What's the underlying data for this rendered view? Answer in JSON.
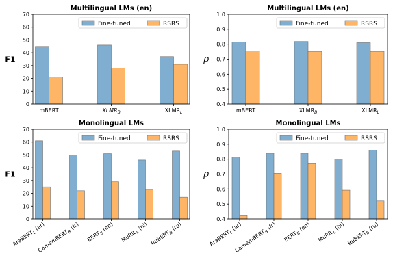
{
  "chart_data": [
    {
      "type": "bar",
      "title": "Multilingual LMs (en)",
      "ylabel": "F1",
      "ylim": [
        0,
        70
      ],
      "yticks": [
        0,
        10,
        20,
        30,
        40,
        50,
        60,
        70
      ],
      "categories": [
        {
          "base": "mBERT",
          "sub": "",
          "italic": false
        },
        {
          "base": "XLMR",
          "sub": "B",
          "italic": true
        },
        {
          "base": "XLMR",
          "sub": "L",
          "italic": false
        }
      ],
      "series": [
        {
          "name": "Fine-tuned",
          "values": [
            45,
            46,
            37
          ]
        },
        {
          "name": "RSRS",
          "values": [
            21,
            28,
            31
          ]
        }
      ],
      "legend": "top-right",
      "grid": false
    },
    {
      "type": "bar",
      "title": "Multilingual LMs (en)",
      "ylabel": "ρ",
      "ylim": [
        0.4,
        1.0
      ],
      "yticks": [
        0.4,
        0.5,
        0.6,
        0.7,
        0.8,
        0.9,
        1.0
      ],
      "categories": [
        {
          "base": "mBERT",
          "sub": "",
          "italic": false
        },
        {
          "base": "XLMR",
          "sub": "B",
          "italic": false
        },
        {
          "base": "XLMR",
          "sub": "L",
          "italic": false
        }
      ],
      "series": [
        {
          "name": "Fine-tuned",
          "values": [
            0.815,
            0.818,
            0.81
          ]
        },
        {
          "name": "RSRS",
          "values": [
            0.755,
            0.752,
            0.752
          ]
        }
      ],
      "legend": "top-right",
      "grid": false
    },
    {
      "type": "bar",
      "title": "Monolingual LMs",
      "ylabel": "F1",
      "ylim": [
        0,
        70
      ],
      "yticks": [
        0,
        10,
        20,
        30,
        40,
        50,
        60,
        70
      ],
      "categories": [
        {
          "base": "AraBERT",
          "sub": "L",
          "suffix": " (ar)"
        },
        {
          "base": "CamemBERT",
          "sub": "B",
          "suffix": " (fr)"
        },
        {
          "base": "BERT",
          "sub": "B",
          "suffix": " (en)"
        },
        {
          "base": "MuRIL",
          "sub": "L",
          "suffix": " (hi)"
        },
        {
          "base": "RuBERT",
          "sub": "B",
          "suffix": " (ru)"
        }
      ],
      "series": [
        {
          "name": "Fine-tuned",
          "values": [
            61,
            50,
            51,
            46,
            53
          ]
        },
        {
          "name": "RSRS",
          "values": [
            25,
            22,
            29,
            23,
            17
          ]
        }
      ],
      "legend": "top-right",
      "grid": false
    },
    {
      "type": "bar",
      "title": "Monolingual LMs",
      "ylabel": "ρ",
      "ylim": [
        0.4,
        1.0
      ],
      "yticks": [
        0.4,
        0.5,
        0.6,
        0.7,
        0.8,
        0.9,
        1.0
      ],
      "categories": [
        {
          "base": "AraBERT",
          "sub": "L",
          "suffix": " (ar)"
        },
        {
          "base": "CamemBERT",
          "sub": "B",
          "suffix": " (fr)"
        },
        {
          "base": "BERT",
          "sub": "B",
          "suffix": " (en)"
        },
        {
          "base": "MuRIL",
          "sub": "L",
          "suffix": " (hi)"
        },
        {
          "base": "RuBERT",
          "sub": "B",
          "suffix": " (ru)"
        }
      ],
      "series": [
        {
          "name": "Fine-tuned",
          "values": [
            0.815,
            0.84,
            0.84,
            0.8,
            0.86
          ]
        },
        {
          "name": "RSRS",
          "values": [
            0.422,
            0.705,
            0.77,
            0.592,
            0.52
          ]
        }
      ],
      "legend": "top-right",
      "grid": false
    }
  ],
  "colors": {
    "fine_tuned": "#80aed0",
    "rsrs": "#ffb566",
    "edge": "#6d6d6d"
  }
}
